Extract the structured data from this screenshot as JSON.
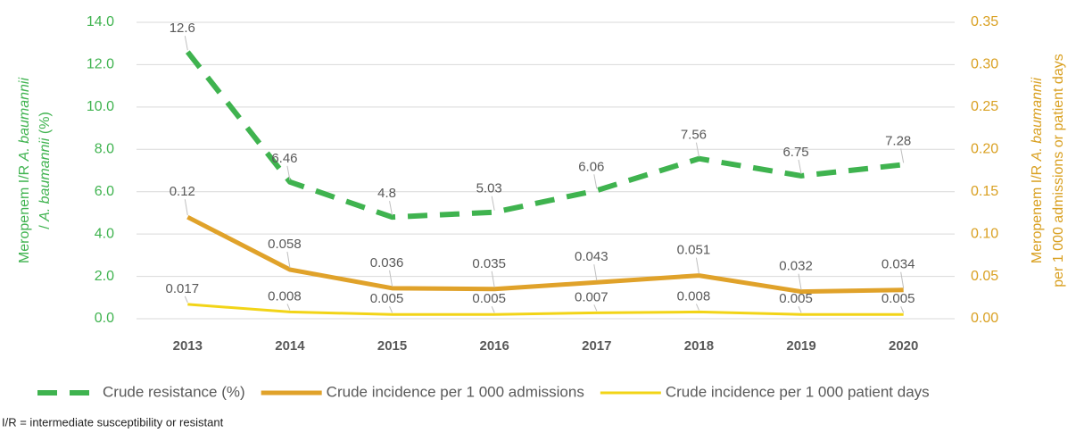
{
  "chart_data": {
    "type": "line",
    "categories": [
      "2013",
      "2014",
      "2015",
      "2016",
      "2017",
      "2018",
      "2019",
      "2020"
    ],
    "series": [
      {
        "name": "Crude resistance (%)",
        "color": "#3fb34f",
        "dashed": true,
        "axis": "y",
        "values": [
          12.6,
          6.46,
          4.8,
          5.03,
          6.06,
          7.56,
          6.75,
          7.28
        ]
      },
      {
        "name": "Crude incidence per 1 000 admissions",
        "color": "#e0a22a",
        "dashed": false,
        "axis": "y2",
        "values": [
          0.12,
          0.058,
          0.036,
          0.035,
          0.043,
          0.051,
          0.032,
          0.034
        ]
      },
      {
        "name": "Crude incidence per 1 000 patient days",
        "color": "#f2d417",
        "dashed": false,
        "axis": "y2",
        "values": [
          0.017,
          0.008,
          0.005,
          0.005,
          0.007,
          0.008,
          0.005,
          0.005
        ]
      }
    ],
    "ylim": [
      0,
      14
    ],
    "yticks": [
      {
        "value": 0,
        "label": "0.0"
      },
      {
        "value": 2,
        "label": "2.0"
      },
      {
        "value": 4,
        "label": "4.0"
      },
      {
        "value": 6,
        "label": "6.0"
      },
      {
        "value": 8,
        "label": "8.0"
      },
      {
        "value": 10,
        "label": "10.0"
      },
      {
        "value": 12,
        "label": "12.0"
      },
      {
        "value": 14,
        "label": "14.0"
      }
    ],
    "y2lim": [
      0,
      0.35
    ],
    "y2ticks": [
      {
        "value": 0,
        "label": "0.00"
      },
      {
        "value": 0.05,
        "label": "0.05"
      },
      {
        "value": 0.1,
        "label": "0.10"
      },
      {
        "value": 0.15,
        "label": "0.15"
      },
      {
        "value": 0.2,
        "label": "0.20"
      },
      {
        "value": 0.25,
        "label": "0.25"
      },
      {
        "value": 0.3,
        "label": "0.30"
      },
      {
        "value": 0.35,
        "label": "0.35"
      }
    ],
    "ylabel": [
      [
        {
          "text": "Meropenem I/R ",
          "italic": false
        },
        {
          "text": "A. baumannii",
          "italic": true
        }
      ],
      [
        {
          "text": "/ ",
          "italic": false
        },
        {
          "text": "A. baumannii",
          "italic": true
        },
        {
          "text": " (%)",
          "italic": false
        }
      ]
    ],
    "y2label": [
      [
        {
          "text": "Meropenem I/R ",
          "italic": false
        },
        {
          "text": "A. baumannii",
          "italic": true
        }
      ],
      [
        {
          "text": "per 1 000 admissions or patient days",
          "italic": false
        }
      ]
    ],
    "ycolor": "#3fb34f",
    "y2color": "#d9a021",
    "grid": true,
    "legend": "bottom",
    "footnote": "I/R = intermediate susceptibility or resistant"
  }
}
